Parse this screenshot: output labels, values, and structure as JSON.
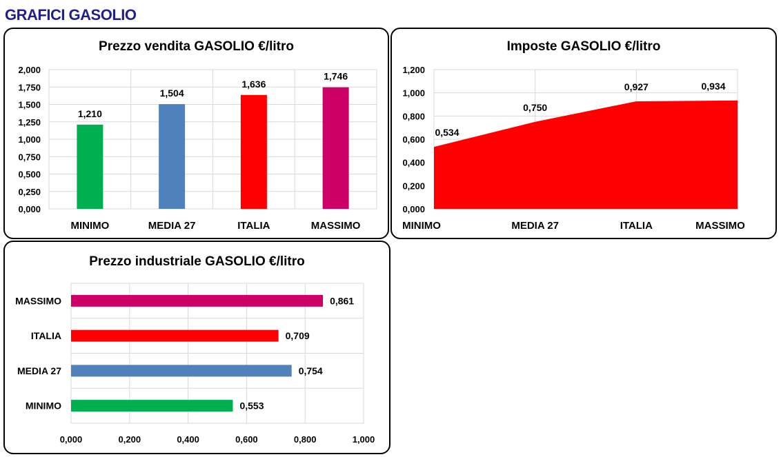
{
  "page_title": "GRAFICI GASOLIO",
  "chart_data": [
    {
      "id": "vendita",
      "type": "bar",
      "title": "Prezzo vendita GASOLIO €/litro",
      "categories": [
        "MINIMO",
        "MEDIA 27",
        "ITALIA",
        "MASSIMO"
      ],
      "values": [
        1.21,
        1.504,
        1.636,
        1.746
      ],
      "value_labels": [
        "1,210",
        "1,504",
        "1,636",
        "1,746"
      ],
      "colors": [
        "#00b050",
        "#4f81bd",
        "#ff0000",
        "#cc0066"
      ],
      "ylim": [
        0,
        2.0
      ],
      "yticks": [
        "0,000",
        "0,250",
        "0,500",
        "0,750",
        "1,000",
        "1,250",
        "1,500",
        "1,750",
        "2,000"
      ],
      "grid": true,
      "legend": "none"
    },
    {
      "id": "imposte",
      "type": "area",
      "title": "Imposte GASOLIO €/litro",
      "categories": [
        "MINIMO",
        "MEDIA 27",
        "ITALIA",
        "MASSIMO"
      ],
      "values": [
        0.534,
        0.75,
        0.927,
        0.934
      ],
      "value_labels": [
        "0,534",
        "0,750",
        "0,927",
        "0,934"
      ],
      "color": "#ff0000",
      "ylim": [
        0,
        1.2
      ],
      "yticks": [
        "0,000",
        "0,200",
        "0,400",
        "0,600",
        "0,800",
        "1,000",
        "1,200"
      ],
      "grid": true,
      "legend": "none"
    },
    {
      "id": "industriale",
      "type": "bar",
      "orientation": "horizontal",
      "title": "Prezzo industriale GASOLIO €/litro",
      "categories": [
        "MINIMO",
        "MEDIA 27",
        "ITALIA",
        "MASSIMO"
      ],
      "values": [
        0.553,
        0.754,
        0.709,
        0.861
      ],
      "value_labels": [
        "0,553",
        "0,754",
        "0,709",
        "0,861"
      ],
      "colors": [
        "#00b050",
        "#4f81bd",
        "#ff0000",
        "#cc0066"
      ],
      "xlim": [
        0,
        1.0
      ],
      "xticks": [
        "0,000",
        "0,200",
        "0,400",
        "0,600",
        "0,800",
        "1,000"
      ],
      "grid": true,
      "legend": "none"
    }
  ]
}
